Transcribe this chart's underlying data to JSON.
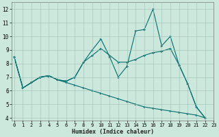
{
  "xlabel": "Humidex (Indice chaleur)",
  "background_color": "#cce8dd",
  "grid_color": "#9dbfb5",
  "line_color": "#006b6b",
  "series1_y": [
    8.5,
    6.2,
    6.6,
    7.0,
    7.1,
    6.8,
    6.7,
    7.0,
    8.1,
    9.0,
    9.8,
    8.5,
    7.0,
    7.8,
    10.4,
    10.5,
    12.0,
    9.3,
    10.0,
    7.9,
    6.5,
    4.8,
    4.0
  ],
  "series2_y": [
    8.5,
    6.2,
    6.6,
    7.0,
    7.1,
    6.8,
    6.6,
    6.4,
    6.2,
    6.0,
    5.8,
    5.6,
    5.4,
    5.2,
    5.0,
    4.8,
    4.7,
    4.6,
    4.5,
    4.4,
    4.3,
    4.2,
    4.0
  ],
  "series3_y": [
    8.5,
    6.2,
    6.6,
    7.0,
    7.1,
    6.8,
    6.7,
    7.0,
    8.1,
    8.6,
    9.1,
    8.6,
    8.1,
    8.1,
    8.3,
    8.6,
    8.8,
    8.9,
    9.1,
    7.9,
    6.5,
    4.8,
    4.0
  ],
  "x_values": [
    0,
    1,
    2,
    3,
    4,
    5,
    6,
    7,
    8,
    9,
    10,
    11,
    12,
    13,
    14,
    15,
    16,
    17,
    18,
    19,
    20,
    21,
    22
  ],
  "ylim": [
    3.8,
    12.5
  ],
  "xlim": [
    -0.3,
    22.5
  ],
  "yticks": [
    4,
    5,
    6,
    7,
    8,
    9,
    10,
    11,
    12
  ],
  "xticks": [
    0,
    1,
    2,
    3,
    4,
    5,
    6,
    7,
    8,
    9,
    10,
    11,
    12,
    13,
    14,
    15,
    16,
    17,
    18,
    19,
    20,
    21,
    22,
    23
  ],
  "xtick_labels": [
    "0",
    "1",
    "2",
    "3",
    "4",
    "5",
    "6",
    "7",
    "8",
    "9",
    "10",
    "11",
    "12",
    "13",
    "14",
    "15",
    "16",
    "17",
    "18",
    "19",
    "20",
    "21",
    "22",
    "23"
  ],
  "ytick_labels": [
    "4",
    "5",
    "6",
    "7",
    "8",
    "9",
    "10",
    "11",
    "12"
  ],
  "xlabel_fontsize": 6.0,
  "tick_fontsize": 5.0,
  "linewidth": 0.8,
  "markersize": 2.0
}
